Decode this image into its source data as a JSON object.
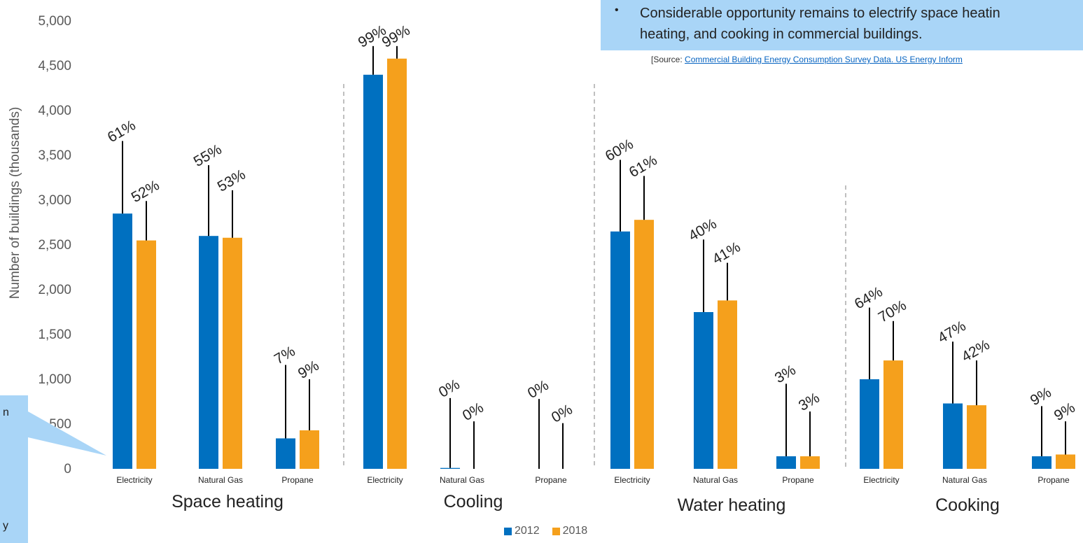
{
  "callout_top": {
    "bullet": "•",
    "line1": "Considerable opportunity remains to electrify space heatin",
    "line2": "heating, and cooking in commercial buildings."
  },
  "source": {
    "prefix": "[Source: ",
    "link": "Commercial Building Energy Consumption Survey Data. US Energy Inform"
  },
  "callout_left": {
    "frag1": "n",
    "frag2": "y"
  },
  "colors": {
    "s2012": "#0070c0",
    "s2018": "#f5a01c",
    "callout": "#a9d5f7",
    "leader": "#000000",
    "separator": "#bfbfbf"
  },
  "chart_data": {
    "type": "bar",
    "ylabel": "Number of buildings (thousands)",
    "ylim": [
      0,
      5000
    ],
    "yticks": [
      "0",
      "500",
      "1,000",
      "1,500",
      "2,000",
      "2,500",
      "3,000",
      "3,500",
      "4,000",
      "4,500",
      "5,000"
    ],
    "groups": [
      {
        "name": "Space heating",
        "categories": [
          "Electricity",
          "Natural Gas",
          "Propane"
        ]
      },
      {
        "name": "Cooling",
        "categories": [
          "Electricity",
          "Natural Gas",
          "Propane"
        ]
      },
      {
        "name": "Water heating",
        "categories": [
          "Electricity",
          "Natural Gas",
          "Propane"
        ]
      },
      {
        "name": "Cooking",
        "categories": [
          "Electricity",
          "Natural Gas",
          "Propane"
        ]
      }
    ],
    "series": [
      {
        "name": "2012",
        "values": [
          2850,
          2600,
          340,
          4400,
          10,
          0,
          2650,
          1750,
          140,
          1000,
          730,
          140
        ],
        "labels": [
          "61%",
          "55%",
          "7%",
          "99%",
          "0%",
          "0%",
          "60%",
          "40%",
          "3%",
          "64%",
          "47%",
          "9%"
        ]
      },
      {
        "name": "2018",
        "values": [
          2550,
          2580,
          430,
          4580,
          0,
          0,
          2780,
          1880,
          140,
          1210,
          710,
          160
        ],
        "labels": [
          "52%",
          "53%",
          "9%",
          "99%",
          "0%",
          "0%",
          "61%",
          "41%",
          "3%",
          "70%",
          "42%",
          "9%"
        ]
      }
    ],
    "legend_position": "bottom",
    "grid": false
  }
}
